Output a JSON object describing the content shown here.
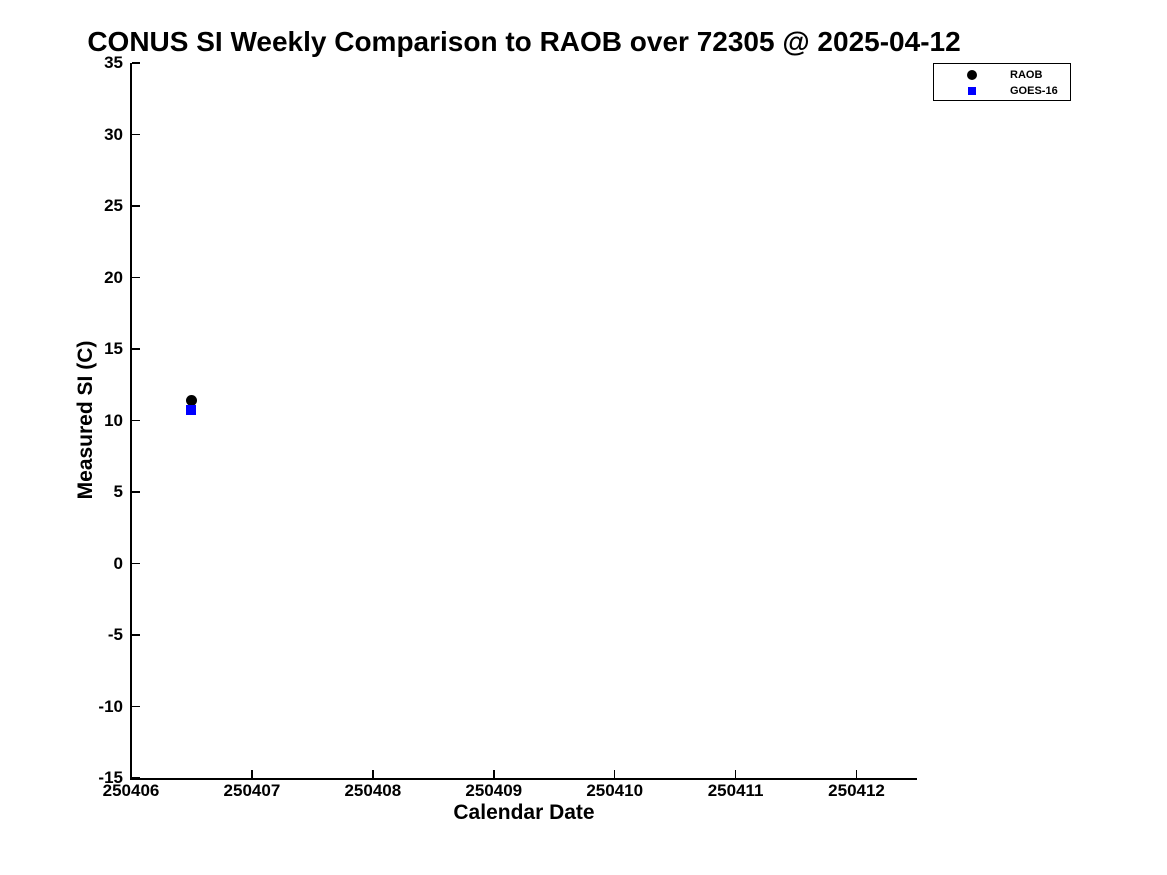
{
  "chart_data": {
    "type": "scatter",
    "title": "CONUS SI Weekly Comparison to RAOB over 72305 @ 2025-04-12",
    "xlabel": "Calendar Date",
    "ylabel": "Measured SI (C)",
    "xlim": [
      250406,
      250412.5
    ],
    "ylim": [
      -15,
      35
    ],
    "x_ticks": [
      250406,
      250407,
      250408,
      250409,
      250410,
      250411,
      250412
    ],
    "y_ticks": [
      -15,
      -10,
      -5,
      0,
      5,
      10,
      15,
      20,
      25,
      30,
      35
    ],
    "grid": false,
    "legend_position": "top-right",
    "series": [
      {
        "name": "RAOB",
        "marker": "circle",
        "color": "#000000",
        "points": [
          {
            "x": 250406.5,
            "y": 11.4
          }
        ]
      },
      {
        "name": "GOES-16",
        "marker": "square",
        "color": "#0000ff",
        "points": [
          {
            "x": 250406.5,
            "y": 10.7
          }
        ]
      }
    ]
  }
}
